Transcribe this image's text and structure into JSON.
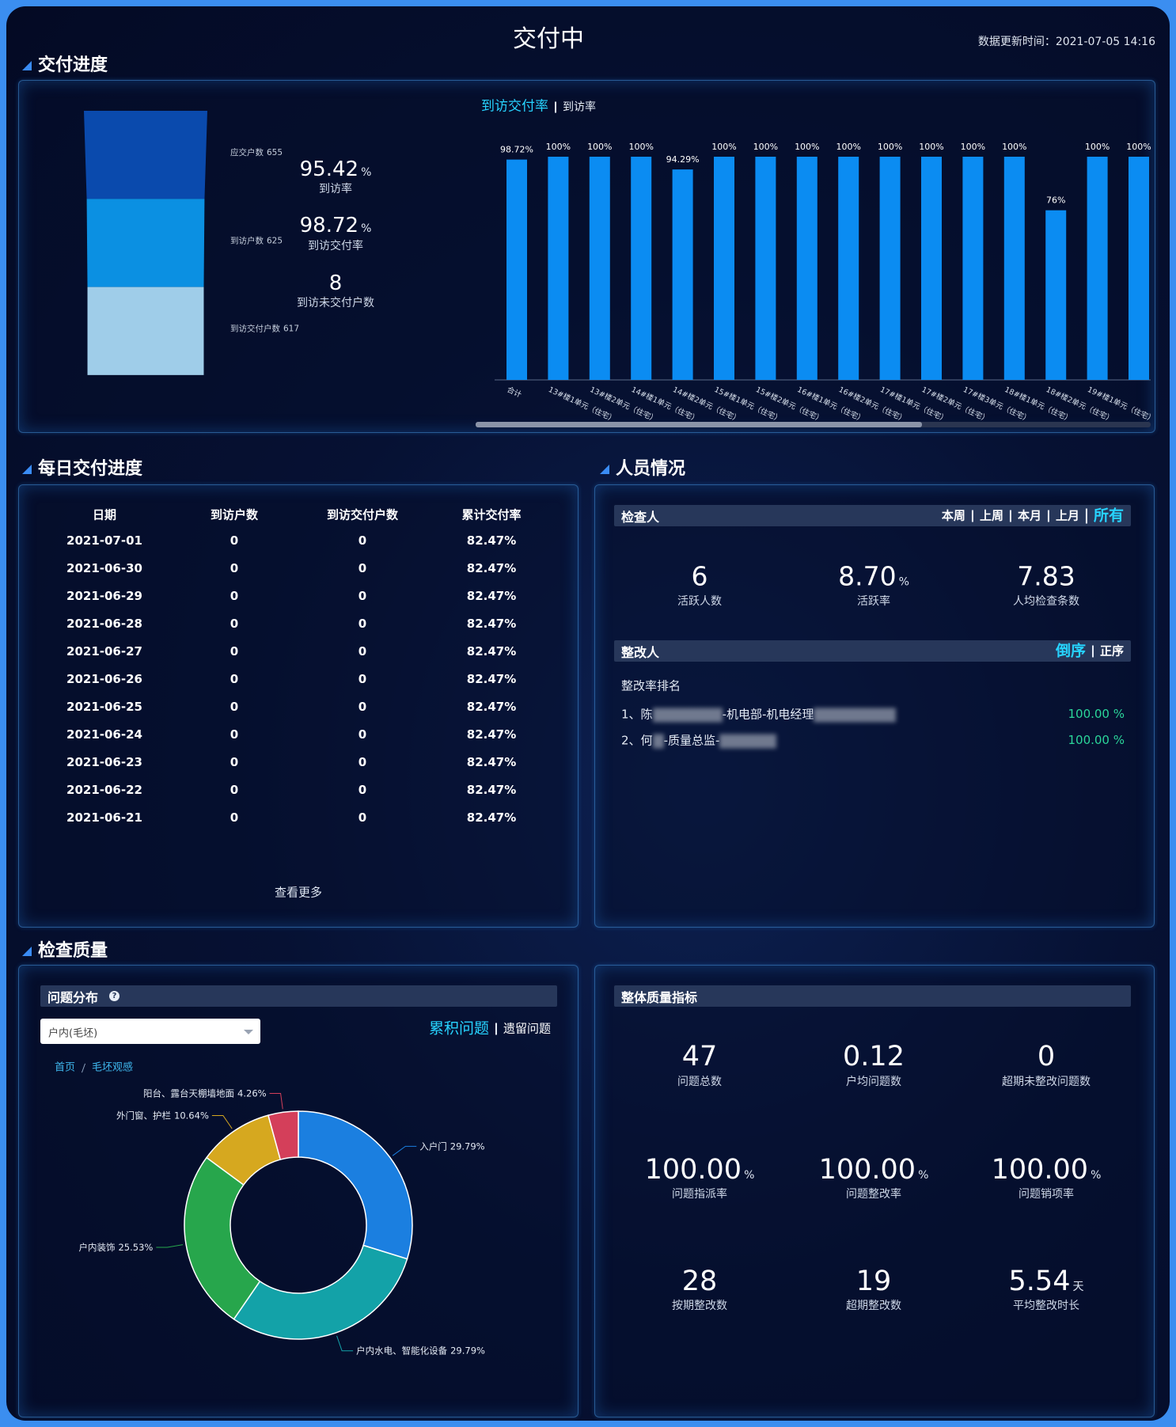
{
  "header": {
    "title": "交付中",
    "update_label": "数据更新时间：",
    "update_time": "2021-07-05 14:16"
  },
  "delivery": {
    "section_title": "交付进度",
    "tabs": [
      "到访交付率",
      "到访率"
    ],
    "active": 0,
    "stats": [
      {
        "value": "95.42",
        "unit": "%",
        "label": "到访率"
      },
      {
        "value": "98.72",
        "unit": "%",
        "label": "到访交付率"
      },
      {
        "value": "8",
        "label": "到访未交付户数"
      }
    ]
  },
  "chart_data": [
    {
      "type": "bar",
      "categories": [
        "合计",
        "13#楼1单元（住宅）",
        "13#楼2单元（住宅）",
        "14#楼1单元（住宅）",
        "14#楼2单元（住宅）",
        "15#楼1单元（住宅）",
        "15#楼2单元（住宅）",
        "16#楼1单元（住宅）",
        "16#楼2单元（住宅）",
        "17#楼1单元（住宅）",
        "17#楼2单元（住宅）",
        "17#楼3单元（住宅）",
        "18#楼1单元（住宅）",
        "18#楼2单元（住宅）",
        "19#楼1单元（住宅）",
        null
      ],
      "values": [
        98.72,
        100,
        100,
        100,
        94.29,
        100,
        100,
        100,
        100,
        100,
        100,
        100,
        100,
        76,
        100,
        100
      ],
      "value_labels": [
        "98.72%",
        "100%",
        "100%",
        "100%",
        "94.29%",
        "100%",
        "100%",
        "100%",
        "100%",
        "100%",
        "100%",
        "100%",
        "100%",
        "76%",
        "100%",
        "100%"
      ],
      "color": "#0b8cf2",
      "ylim": [
        0,
        100
      ]
    },
    {
      "type": "funnel",
      "categories": [
        "应交户数",
        "到访户数",
        "到访交付户数"
      ],
      "values": [
        655,
        625,
        617
      ],
      "colors": [
        "#0a4aad",
        "#0b90e2",
        "#9fcde9"
      ]
    },
    {
      "type": "pie",
      "donut": true,
      "categories": [
        "入户门",
        "户内水电、智能化设备",
        "户内装饰",
        "外门窗、护栏",
        "阳台、露台天棚墙地面"
      ],
      "values": [
        29.79,
        29.79,
        25.53,
        10.64,
        4.26
      ],
      "value_labels": [
        "29.79%",
        "29.79%",
        "25.53%",
        "10.64%",
        "4.26%"
      ],
      "colors": [
        "#1b7fe0",
        "#13a2a8",
        "#27a64c",
        "#d6a81f",
        "#d43f5a"
      ]
    }
  ],
  "daily": {
    "section_title": "每日交付进度",
    "table": {
      "columns": [
        "日期",
        "到访户数",
        "到访交付户数",
        "累计交付率"
      ],
      "rows": [
        [
          "2021-07-01",
          "0",
          "0",
          "82.47%"
        ],
        [
          "2021-06-30",
          "0",
          "0",
          "82.47%"
        ],
        [
          "2021-06-29",
          "0",
          "0",
          "82.47%"
        ],
        [
          "2021-06-28",
          "0",
          "0",
          "82.47%"
        ],
        [
          "2021-06-27",
          "0",
          "0",
          "82.47%"
        ],
        [
          "2021-06-26",
          "0",
          "0",
          "82.47%"
        ],
        [
          "2021-06-25",
          "0",
          "0",
          "82.47%"
        ],
        [
          "2021-06-24",
          "0",
          "0",
          "82.47%"
        ],
        [
          "2021-06-23",
          "0",
          "0",
          "82.47%"
        ],
        [
          "2021-06-22",
          "0",
          "0",
          "82.47%"
        ],
        [
          "2021-06-21",
          "0",
          "0",
          "82.47%"
        ]
      ]
    },
    "more": "查看更多"
  },
  "staff": {
    "section_title": "人员情况",
    "checker": {
      "title": "检查人",
      "tabs": [
        "本周",
        "上周",
        "本月",
        "上月",
        "所有"
      ],
      "active": 4,
      "stats": [
        {
          "value": "6",
          "label": "活跃人数"
        },
        {
          "value": "8.70",
          "unit": "%",
          "label": "活跃率"
        },
        {
          "value": "7.83",
          "label": "人均检查条数"
        }
      ]
    },
    "fixer": {
      "title": "整改人",
      "tabs": [
        "倒序",
        "正序"
      ],
      "active": 0,
      "subtitle": "整改率排名",
      "rows": [
        {
          "rank": "1、",
          "name": "陈",
          "role": "-机电部-机电经理",
          "rate": "100.00 %"
        },
        {
          "rank": "2、",
          "name": "何",
          "role": "-质量总监-",
          "rate": "100.00 %"
        }
      ]
    }
  },
  "quality": {
    "section_title": "检查质量",
    "distribution": {
      "title": "问题分布",
      "select": "户内(毛坯)",
      "tabs": [
        "累积问题",
        "遗留问题"
      ],
      "active": 0,
      "breadcrumb": [
        "首页",
        "毛坯观感"
      ]
    },
    "overall": {
      "title": "整体质量指标",
      "stats": [
        {
          "value": "47",
          "label": "问题总数"
        },
        {
          "value": "0.12",
          "label": "户均问题数"
        },
        {
          "value": "0",
          "label": "超期未整改问题数"
        },
        {
          "value": "100.00",
          "unit": "%",
          "label": "问题指派率"
        },
        {
          "value": "100.00",
          "unit": "%",
          "label": "问题整改率"
        },
        {
          "value": "100.00",
          "unit": "%",
          "label": "问题销项率"
        },
        {
          "value": "28",
          "label": "按期整改数"
        },
        {
          "value": "19",
          "label": "超期整改数"
        },
        {
          "value": "5.54",
          "unit": "天",
          "label": "平均整改时长"
        }
      ]
    }
  }
}
